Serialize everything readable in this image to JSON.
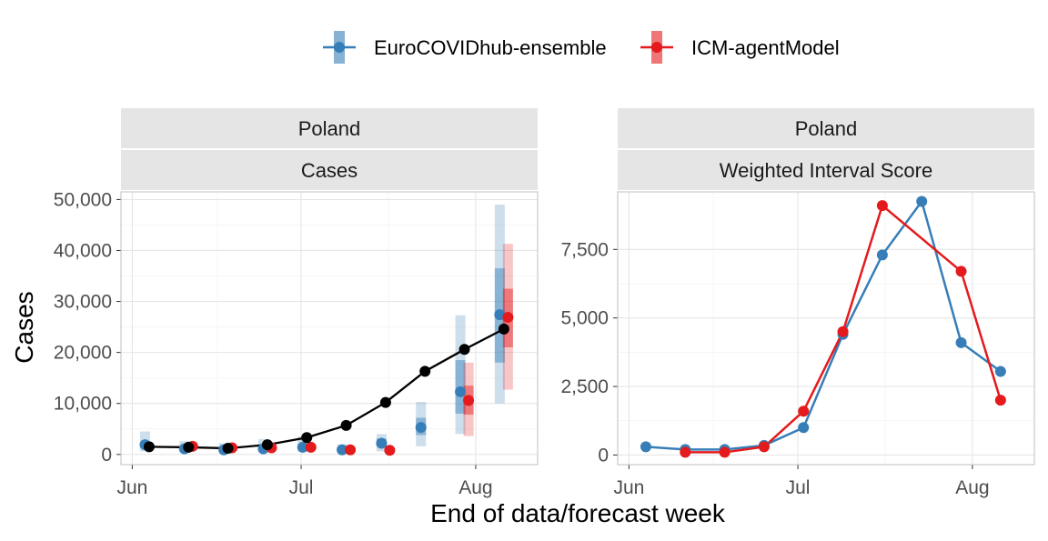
{
  "legend": {
    "items": [
      {
        "name": "EuroCOVIDhub-ensemble",
        "color": "#377eb8"
      },
      {
        "name": "ICM-agentModel",
        "color": "#e41a1c"
      }
    ]
  },
  "xlabel": "End of data/forecast week",
  "chart_data": [
    {
      "type": "scatter",
      "panel": "left",
      "strip_top": "Poland",
      "strip_bottom": "Cases",
      "ylabel": "Cases",
      "x_ticks": [
        "Jun",
        "Jul",
        "Aug"
      ],
      "x_tick_dates": [
        "2021-06-01",
        "2021-07-01",
        "2021-08-01"
      ],
      "xlim": [
        "2021-05-30",
        "2021-08-12"
      ],
      "y_ticks": [
        "0",
        "10,000",
        "20,000",
        "30,000",
        "40,000",
        "50,000"
      ],
      "y_tick_values": [
        0,
        10000,
        20000,
        30000,
        40000,
        50000
      ],
      "ylim": [
        -2000,
        51500
      ],
      "grid": true,
      "observed": {
        "color": "#000000",
        "x": [
          "2021-06-04",
          "2021-06-11",
          "2021-06-18",
          "2021-06-25",
          "2021-07-02",
          "2021-07-09",
          "2021-07-16",
          "2021-07-23",
          "2021-07-30",
          "2021-08-06"
        ],
        "y": [
          1500,
          1400,
          1200,
          1900,
          3300,
          5700,
          10200,
          16300,
          20600,
          24600
        ]
      },
      "forecasts": [
        {
          "name": "EuroCOVIDhub-ensemble",
          "color": "#377eb8",
          "x": [
            "2021-06-04",
            "2021-06-11",
            "2021-06-18",
            "2021-06-25",
            "2021-07-02",
            "2021-07-09",
            "2021-07-16",
            "2021-07-23",
            "2021-07-30",
            "2021-08-06"
          ],
          "median": [
            1900,
            1100,
            900,
            1100,
            1400,
            900,
            2200,
            5300,
            12300,
            27400
          ],
          "inner": [
            [
              1300,
              2400
            ],
            [
              900,
              1500
            ],
            [
              700,
              1200
            ],
            [
              800,
              1500
            ],
            [
              1000,
              2000
            ],
            [
              600,
              1300
            ],
            [
              1500,
              3100
            ],
            [
              3800,
              7200
            ],
            [
              8000,
              18500
            ],
            [
              18000,
              36500
            ]
          ],
          "outer": [
            [
              600,
              4500
            ],
            [
              500,
              2600
            ],
            [
              300,
              2200
            ],
            [
              400,
              3000
            ],
            [
              500,
              3500
            ],
            [
              300,
              2000
            ],
            [
              600,
              4000
            ],
            [
              1600,
              10300
            ],
            [
              4000,
              27300
            ],
            [
              10000,
              49000
            ]
          ]
        },
        {
          "name": "ICM-agentModel",
          "color": "#e41a1c",
          "x": [
            "2021-06-11",
            "2021-06-18",
            "2021-06-25",
            "2021-07-02",
            "2021-07-09",
            "2021-07-16",
            "2021-07-30",
            "2021-08-06"
          ],
          "median": [
            1600,
            1300,
            1300,
            1400,
            900,
            800,
            10600,
            26900
          ],
          "inner": [
            [
              1300,
              1900
            ],
            [
              1100,
              1500
            ],
            [
              1100,
              1500
            ],
            [
              1200,
              1600
            ],
            [
              700,
              1100
            ],
            [
              600,
              1000
            ],
            [
              7800,
              13500
            ],
            [
              21000,
              32500
            ]
          ],
          "outer": [
            [
              1000,
              2200
            ],
            [
              900,
              1800
            ],
            [
              900,
              1800
            ],
            [
              1000,
              1900
            ],
            [
              500,
              1300
            ],
            [
              500,
              1200
            ],
            [
              3600,
              18000
            ],
            [
              12700,
              41300
            ]
          ]
        }
      ]
    },
    {
      "type": "line",
      "panel": "right",
      "strip_top": "Poland",
      "strip_bottom": "Weighted Interval Score",
      "ylabel": "",
      "x_ticks": [
        "Jun",
        "Jul",
        "Aug"
      ],
      "x_tick_dates": [
        "2021-06-01",
        "2021-07-01",
        "2021-08-01"
      ],
      "xlim": [
        "2021-05-30",
        "2021-08-12"
      ],
      "y_ticks": [
        "0",
        "2,500",
        "5,000",
        "7,500"
      ],
      "y_tick_values": [
        0,
        2500,
        5000,
        7500
      ],
      "ylim": [
        -350,
        9600
      ],
      "grid": true,
      "series": [
        {
          "name": "EuroCOVIDhub-ensemble",
          "color": "#377eb8",
          "x": [
            "2021-06-04",
            "2021-06-11",
            "2021-06-18",
            "2021-06-25",
            "2021-07-02",
            "2021-07-09",
            "2021-07-16",
            "2021-07-23",
            "2021-07-30",
            "2021-08-06"
          ],
          "y": [
            300,
            200,
            200,
            350,
            1000,
            4400,
            7300,
            9250,
            4100,
            3050
          ]
        },
        {
          "name": "ICM-agentModel",
          "color": "#e41a1c",
          "x": [
            "2021-06-11",
            "2021-06-18",
            "2021-06-25",
            "2021-07-02",
            "2021-07-09",
            "2021-07-16",
            "2021-07-30",
            "2021-08-06"
          ],
          "y": [
            100,
            100,
            300,
            1600,
            4500,
            9100,
            6700,
            2000
          ]
        }
      ]
    }
  ]
}
